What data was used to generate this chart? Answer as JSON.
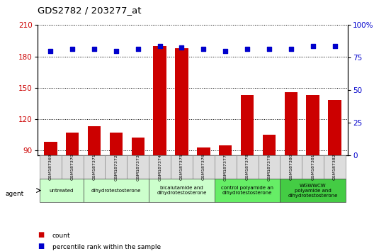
{
  "title": "GDS2782 / 203277_at",
  "samples": [
    "GSM187369",
    "GSM187370",
    "GSM187371",
    "GSM187372",
    "GSM187373",
    "GSM187374",
    "GSM187375",
    "GSM187376",
    "GSM187377",
    "GSM187378",
    "GSM187379",
    "GSM187380",
    "GSM187381",
    "GSM187382"
  ],
  "counts": [
    98,
    107,
    113,
    107,
    102,
    190,
    188,
    93,
    95,
    143,
    105,
    146,
    143,
    138
  ],
  "percentiles": [
    80,
    82,
    82,
    80,
    82,
    84,
    83,
    82,
    80,
    82,
    82,
    82,
    84,
    84
  ],
  "ylim_left": [
    85,
    210
  ],
  "ylim_right": [
    0,
    100
  ],
  "yticks_left": [
    90,
    120,
    150,
    180,
    210
  ],
  "yticks_right": [
    0,
    25,
    50,
    75,
    100
  ],
  "bar_color": "#cc0000",
  "dot_color": "#0000cc",
  "group_spans": [
    [
      0,
      1,
      "untreated",
      "#ccffcc"
    ],
    [
      2,
      4,
      "dihydrotestosterone",
      "#ccffcc"
    ],
    [
      5,
      7,
      "bicalutamide and\ndihydrotestosterone",
      "#ccffcc"
    ],
    [
      8,
      10,
      "control polyamide an\ndihydrotestosterone",
      "#66ee66"
    ],
    [
      11,
      13,
      "WGWWCW\npolyamide and\ndihydrotestosterone",
      "#44cc44"
    ]
  ],
  "legend_count_label": "count",
  "legend_pct_label": "percentile rank within the sample",
  "agent_label": "agent",
  "bg_color": "#ffffff"
}
